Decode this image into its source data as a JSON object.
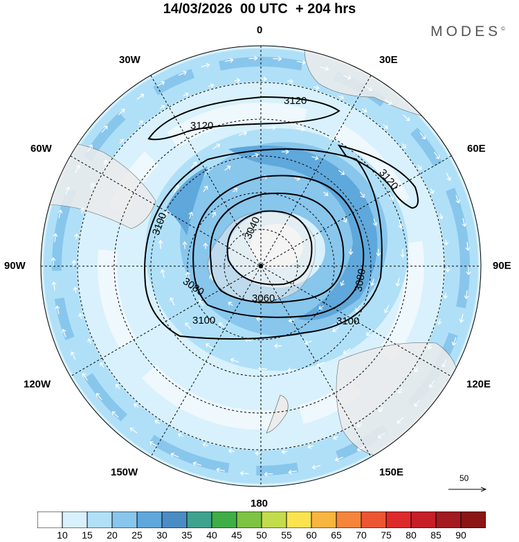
{
  "title": "14/03/2026  00 UTC  + 204 hrs",
  "brand": "MODES",
  "brand_mark": "©",
  "longitude_labels": {
    "top": "0",
    "bottom": "180",
    "left": "90W",
    "right": "90E",
    "tl1": "30W",
    "tl2": "60W",
    "bl1": "120W",
    "bl2": "150W",
    "tr1": "30E",
    "tr2": "60E",
    "br1": "120E",
    "br2": "150E"
  },
  "contour_labels": {
    "c3120a": "3120",
    "c3120b": "3120",
    "c3120c": "3120",
    "c3100a": "3100",
    "c3100b": "3100",
    "c3100c": "3100",
    "c3080a": "3080",
    "c3080b": "3080",
    "c3060": "3060",
    "c3040": "3040"
  },
  "vector_reference": "50",
  "colorbar": {
    "colors": [
      "#ffffff",
      "#d8f1fc",
      "#b0e0f8",
      "#88c6ec",
      "#5fa8dc",
      "#4a8cc4",
      "#3ea38e",
      "#3fae46",
      "#7cc442",
      "#c3dc4c",
      "#fbe350",
      "#f8b53f",
      "#f4853a",
      "#ec5632",
      "#de2a2b",
      "#c71e28",
      "#a31a21",
      "#8b1515"
    ],
    "ticks": [
      "10",
      "15",
      "20",
      "25",
      "30",
      "35",
      "40",
      "45",
      "50",
      "55",
      "60",
      "65",
      "70",
      "75",
      "80",
      "85",
      "90"
    ]
  },
  "colors": {
    "wind_light": "#d8f1fc",
    "wind_mid": "#b0e0f8",
    "wind_strong": "#88c6ec",
    "wind_core": "#5fa8dc",
    "land": "#ececec",
    "contour": "#000000"
  }
}
